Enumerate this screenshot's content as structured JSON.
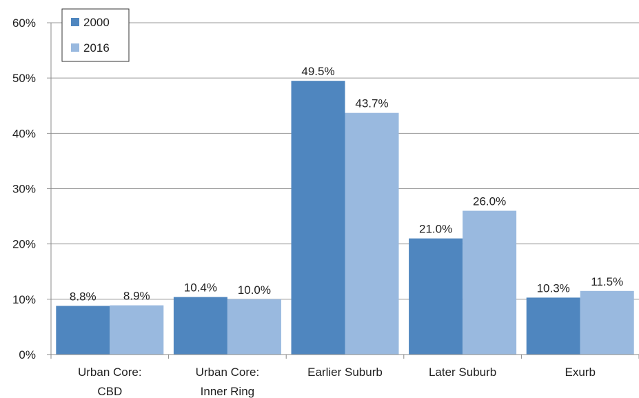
{
  "chart_data": {
    "type": "bar",
    "categories": [
      [
        "Urban Core:",
        "CBD"
      ],
      [
        "Urban Core:",
        "Inner Ring"
      ],
      [
        "Earlier Suburb"
      ],
      [
        "Later Suburb"
      ],
      [
        "Exurb"
      ]
    ],
    "series": [
      {
        "name": "2000",
        "color": "#4f86bf",
        "values": [
          8.8,
          10.4,
          49.5,
          21.0,
          10.3
        ],
        "labels": [
          "8.8%",
          "10.4%",
          "49.5%",
          "21.0%",
          "10.3%"
        ]
      },
      {
        "name": "2016",
        "color": "#99b9df",
        "values": [
          8.9,
          10.0,
          43.7,
          26.0,
          11.5
        ],
        "labels": [
          "8.9%",
          "10.0%",
          "43.7%",
          "26.0%",
          "11.5%"
        ]
      }
    ],
    "yticks": [
      "0%",
      "10%",
      "20%",
      "30%",
      "40%",
      "50%",
      "60%"
    ],
    "ylim": [
      0,
      60
    ],
    "grid": true,
    "legend_position": "top-left"
  }
}
